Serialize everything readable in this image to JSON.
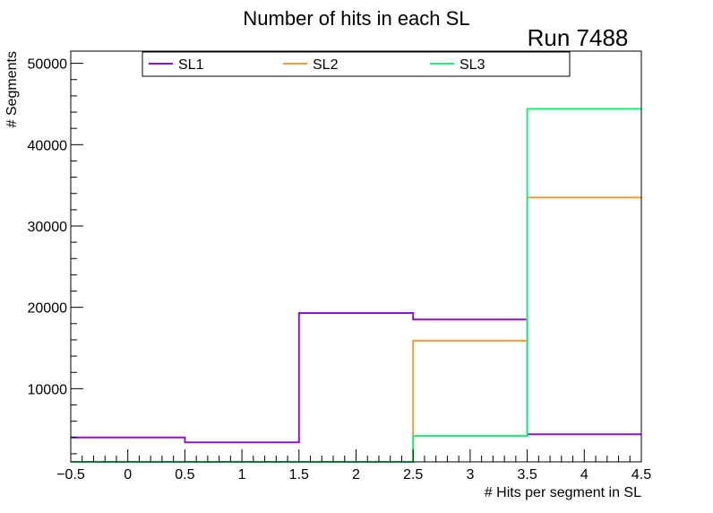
{
  "chart_data": {
    "type": "histogram-step",
    "title": "Number of hits in each SL",
    "annotation": "Run 7488",
    "xlabel": "# Hits per segment in SL",
    "ylabel": "# Segments",
    "xlim": [
      -0.5,
      4.5
    ],
    "ylim": [
      1000,
      51500
    ],
    "x_tick_labels": [
      "−0.5",
      "0",
      "0.5",
      "1",
      "1.5",
      "2",
      "2.5",
      "3",
      "3.5",
      "4",
      "4.5"
    ],
    "x_tick_values": [
      -0.5,
      0,
      0.5,
      1,
      1.5,
      2,
      2.5,
      3,
      3.5,
      4,
      4.5
    ],
    "y_tick_labels": [
      "10000",
      "20000",
      "30000",
      "40000",
      "50000"
    ],
    "y_tick_values": [
      10000,
      20000,
      30000,
      40000,
      50000
    ],
    "bin_edges": [
      -0.5,
      0.5,
      1.5,
      2.5,
      3.5,
      4.5
    ],
    "series": [
      {
        "name": "SL1",
        "color": "#8a14d4",
        "values": [
          4000,
          3400,
          19300,
          18500,
          4400
        ]
      },
      {
        "name": "SL2",
        "color": "#f39a3a",
        "values": [
          1000,
          1000,
          1000,
          15900,
          33500
        ]
      },
      {
        "name": "SL3",
        "color": "#1ef07a",
        "values": [
          1000,
          1000,
          1000,
          4200,
          44400
        ]
      }
    ],
    "legend_position": "top"
  }
}
